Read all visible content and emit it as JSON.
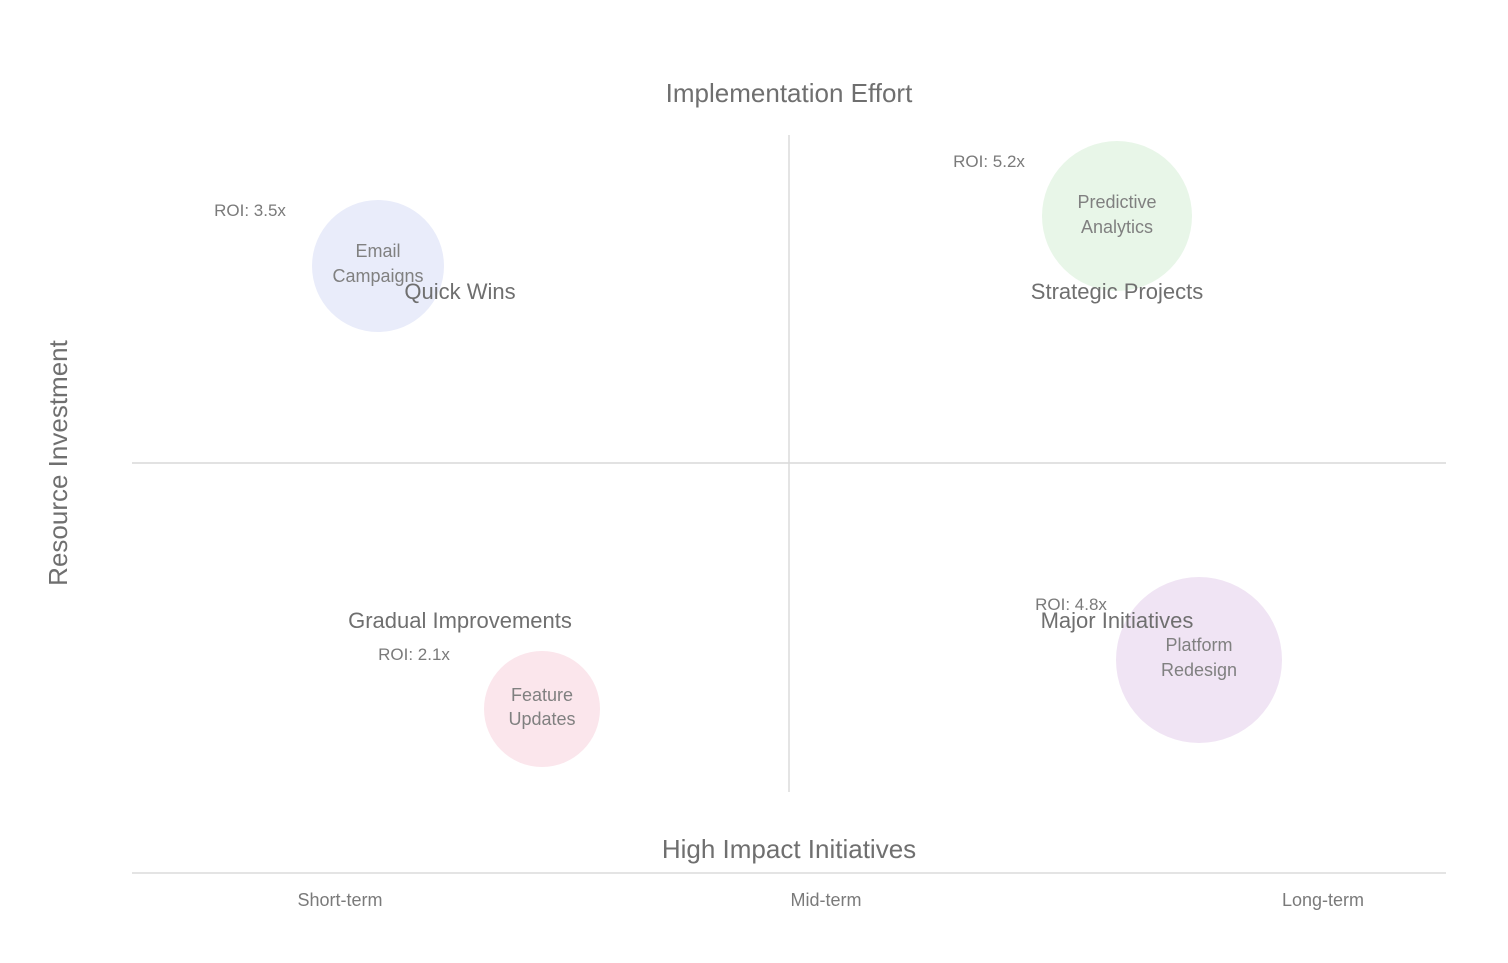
{
  "chart_data": {
    "type": "bubble-quadrant",
    "top_label": "Implementation Effort",
    "bottom_label": "High Impact Initiatives",
    "ylabel": "Resource Investment",
    "x_ticks": [
      "Short-term",
      "Mid-term",
      "Long-term"
    ],
    "quadrants": [
      {
        "id": "quick-wins",
        "label": "Quick Wins",
        "position": "top-left"
      },
      {
        "id": "strategic-projects",
        "label": "Strategic Projects",
        "position": "top-right"
      },
      {
        "id": "gradual-improvements",
        "label": "Gradual Improvements",
        "position": "bottom-left"
      },
      {
        "id": "major-initiatives",
        "label": "Major Initiatives",
        "position": "bottom-right"
      }
    ],
    "bubbles": [
      {
        "id": "email-campaigns",
        "lines": [
          "Email",
          "Campaigns"
        ],
        "roi_label": "ROI: 3.5x",
        "roi": 3.5,
        "x": 0.375,
        "y": 0.6,
        "color": "#e9ecfa"
      },
      {
        "id": "predictive-analytics",
        "lines": [
          "Predictive",
          "Analytics"
        ],
        "roi_label": "ROI: 5.2x",
        "roi": 5.2,
        "x": 0.75,
        "y": 0.78,
        "color": "#e8f6e8"
      },
      {
        "id": "feature-updates",
        "lines": [
          "Feature",
          "Updates"
        ],
        "roi_label": "ROI: 2.1x",
        "roi": 2.1,
        "x": 1.25,
        "y": 0.25,
        "color": "#fbe6ec"
      },
      {
        "id": "platform-redesign",
        "lines": [
          "Platform",
          "Redesign"
        ],
        "roi_label": "ROI: 4.8x",
        "roi": 4.8,
        "x": 1.625,
        "y": 0.1,
        "color": "#f0e4f4"
      }
    ]
  }
}
